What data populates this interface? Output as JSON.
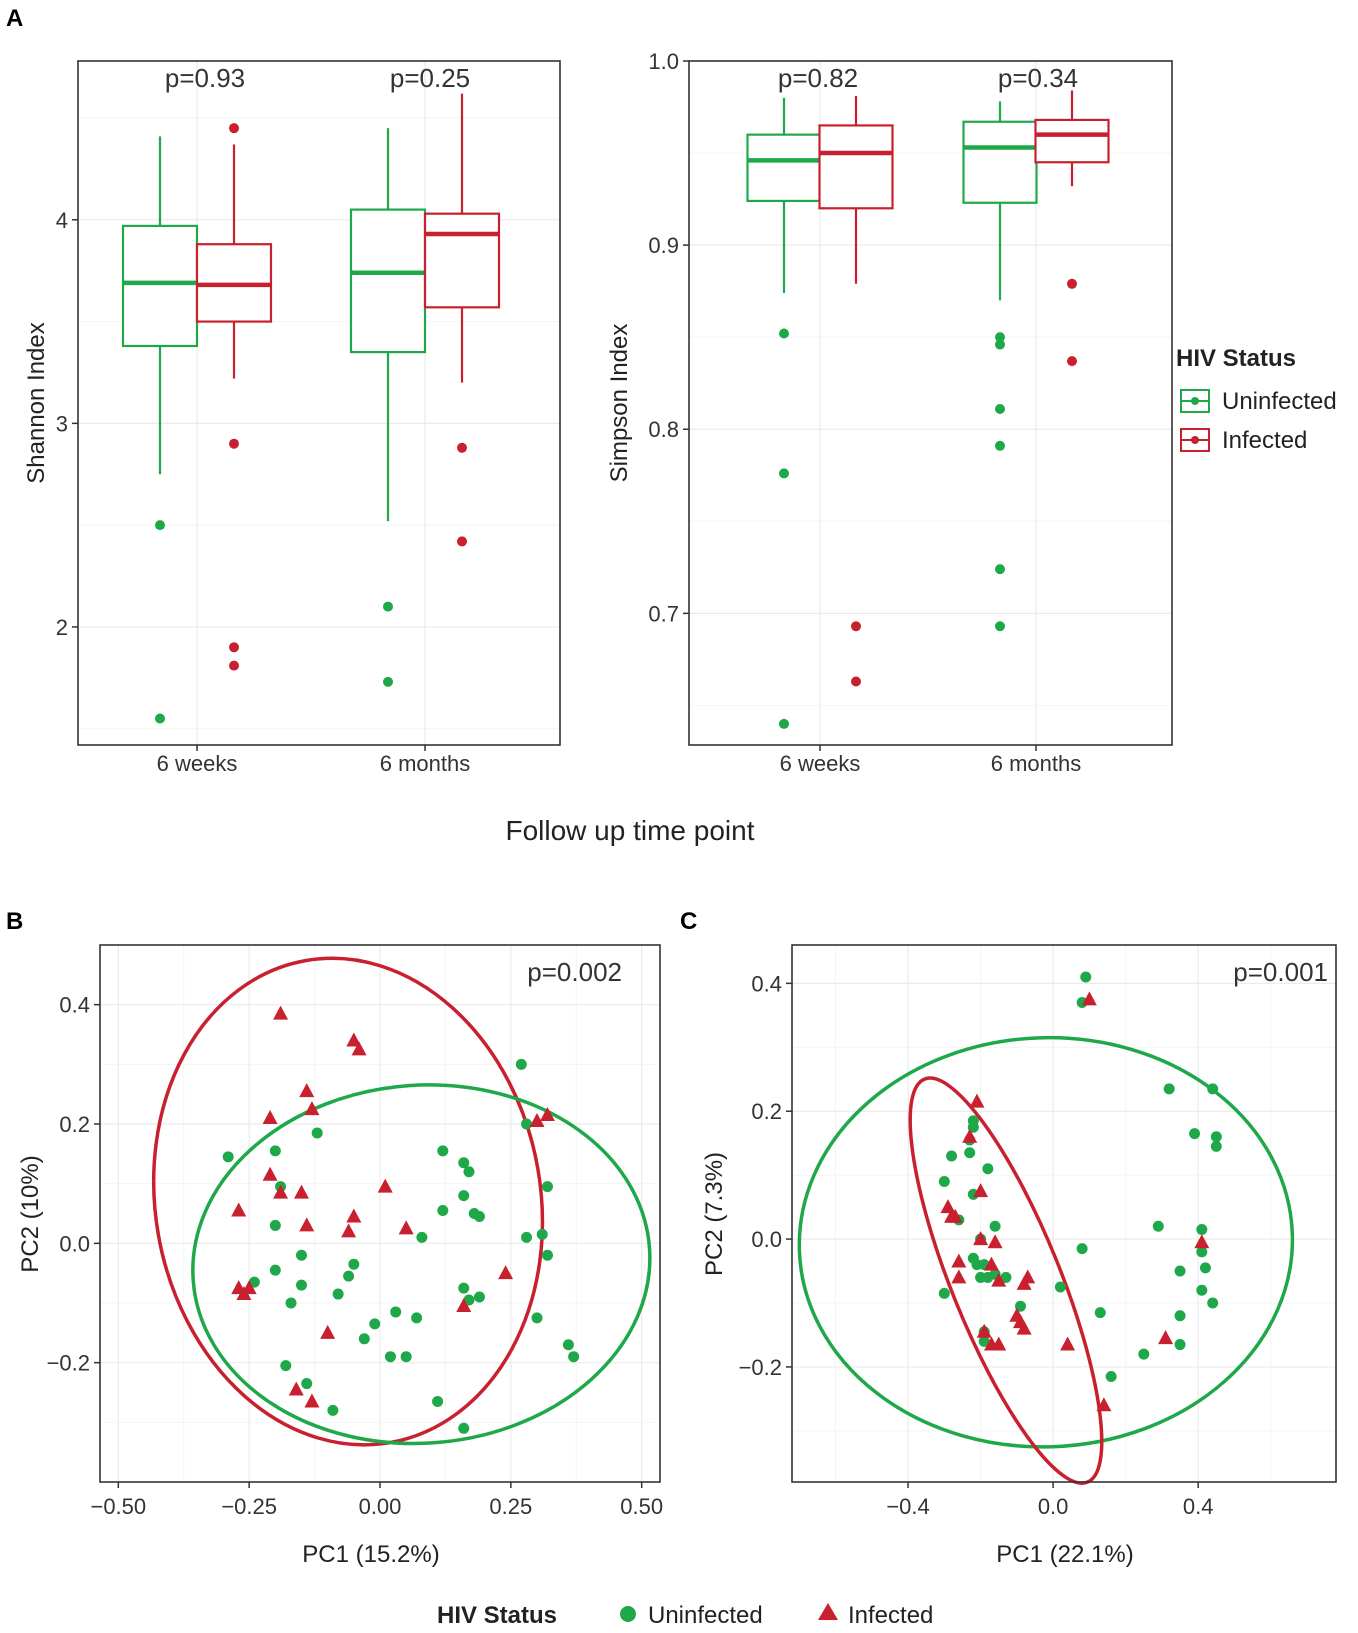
{
  "colors": {
    "uninfected": "#1fa84a",
    "infected": "#c8202e"
  },
  "figure": {
    "panel_a_label": "A",
    "panel_b_label": "B",
    "panel_c_label": "C",
    "shared_xlabel": "Follow up time point"
  },
  "legend_right": {
    "title": "HIV Status",
    "items": [
      "Uninfected",
      "Infected"
    ]
  },
  "legend_bottom": {
    "title": "HIV Status",
    "items": [
      "Uninfected",
      "Infected"
    ]
  },
  "chart_data": [
    {
      "id": "shannon",
      "type": "boxplot",
      "ylabel": "Shannon Index",
      "xlabel": "",
      "categories": [
        "6 weeks",
        "6 months"
      ],
      "ylim": [
        1.42,
        4.78
      ],
      "yticks": [
        2,
        3,
        4
      ],
      "pvalues": [
        "p=0.93",
        "p=0.25"
      ],
      "series": [
        {
          "name": "Uninfected",
          "boxes": [
            {
              "whisker_low": 2.75,
              "q1": 3.38,
              "median": 3.69,
              "q3": 3.97,
              "whisker_high": 4.41,
              "outliers": [
                2.5,
                1.55
              ]
            },
            {
              "whisker_low": 2.52,
              "q1": 3.35,
              "median": 3.74,
              "q3": 4.05,
              "whisker_high": 4.45,
              "outliers": [
                2.1,
                1.73
              ]
            }
          ]
        },
        {
          "name": "Infected",
          "boxes": [
            {
              "whisker_low": 3.22,
              "q1": 3.5,
              "median": 3.68,
              "q3": 3.88,
              "whisker_high": 4.37,
              "outliers": [
                4.45,
                2.9,
                1.9,
                1.81
              ]
            },
            {
              "whisker_low": 3.2,
              "q1": 3.57,
              "median": 3.93,
              "q3": 4.03,
              "whisker_high": 4.62,
              "outliers": [
                2.88,
                2.42
              ]
            }
          ]
        }
      ]
    },
    {
      "id": "simpson",
      "type": "boxplot",
      "ylabel": "Simpson Index",
      "xlabel": "",
      "categories": [
        "6 weeks",
        "6 months"
      ],
      "ylim": [
        0.6285,
        1.0
      ],
      "yticks": [
        0.7,
        0.8,
        0.9,
        1.0
      ],
      "ytick_labels": [
        "0.7",
        "0.8",
        "0.9",
        "1.0"
      ],
      "pvalues": [
        "p=0.82",
        "p=0.34"
      ],
      "series": [
        {
          "name": "Uninfected",
          "boxes": [
            {
              "whisker_low": 0.874,
              "q1": 0.924,
              "median": 0.946,
              "q3": 0.96,
              "whisker_high": 0.98,
              "outliers": [
                0.852,
                0.776,
                0.64
              ]
            },
            {
              "whisker_low": 0.87,
              "q1": 0.923,
              "median": 0.953,
              "q3": 0.967,
              "whisker_high": 0.978,
              "outliers": [
                0.85,
                0.846,
                0.811,
                0.791,
                0.724,
                0.693
              ]
            }
          ]
        },
        {
          "name": "Infected",
          "boxes": [
            {
              "whisker_low": 0.879,
              "q1": 0.92,
              "median": 0.95,
              "q3": 0.965,
              "whisker_high": 0.981,
              "outliers": [
                0.693,
                0.663
              ]
            },
            {
              "whisker_low": 0.932,
              "q1": 0.945,
              "median": 0.96,
              "q3": 0.968,
              "whisker_high": 0.984,
              "outliers": [
                0.879,
                0.837
              ]
            }
          ]
        }
      ]
    },
    {
      "id": "pca_b",
      "type": "scatter",
      "xlabel": "PC1 (15.2%)",
      "ylabel": "PC2 (10%)",
      "xlim": [
        -0.535,
        0.535
      ],
      "ylim": [
        -0.4,
        0.5
      ],
      "xticks": [
        -0.5,
        -0.25,
        0.0,
        0.25,
        0.5
      ],
      "xtick_labels": [
        "−0.50",
        "−0.25",
        "0.00",
        "0.25",
        "0.50"
      ],
      "yticks": [
        -0.2,
        0.0,
        0.2,
        0.4
      ],
      "ytick_labels": [
        "−0.2",
        "0.0",
        "0.2",
        "0.4"
      ],
      "annotation": "p=0.002",
      "series": [
        {
          "name": "Uninfected",
          "marker": "circle",
          "points": [
            [
              -0.29,
              0.145
            ],
            [
              -0.2,
              0.155
            ],
            [
              -0.19,
              0.095
            ],
            [
              -0.2,
              0.03
            ],
            [
              -0.24,
              -0.065
            ],
            [
              -0.2,
              -0.045
            ],
            [
              -0.17,
              -0.1
            ],
            [
              -0.15,
              -0.07
            ],
            [
              -0.15,
              -0.02
            ],
            [
              -0.12,
              0.185
            ],
            [
              -0.14,
              -0.235
            ],
            [
              -0.18,
              -0.205
            ],
            [
              -0.09,
              -0.28
            ],
            [
              -0.08,
              -0.085
            ],
            [
              -0.06,
              -0.055
            ],
            [
              -0.05,
              -0.035
            ],
            [
              -0.03,
              -0.16
            ],
            [
              -0.01,
              -0.135
            ],
            [
              0.02,
              -0.19
            ],
            [
              0.03,
              -0.115
            ],
            [
              0.05,
              -0.19
            ],
            [
              0.07,
              -0.125
            ],
            [
              0.08,
              0.01
            ],
            [
              0.11,
              -0.265
            ],
            [
              0.12,
              0.155
            ],
            [
              0.12,
              0.055
            ],
            [
              0.16,
              0.135
            ],
            [
              0.17,
              0.12
            ],
            [
              0.16,
              0.08
            ],
            [
              0.18,
              0.05
            ],
            [
              0.19,
              0.045
            ],
            [
              0.16,
              -0.075
            ],
            [
              0.17,
              -0.095
            ],
            [
              0.19,
              -0.09
            ],
            [
              0.16,
              -0.31
            ],
            [
              0.27,
              0.3
            ],
            [
              0.28,
              0.2
            ],
            [
              0.28,
              0.01
            ],
            [
              0.31,
              0.015
            ],
            [
              0.32,
              0.095
            ],
            [
              0.32,
              -0.02
            ],
            [
              0.3,
              -0.125
            ],
            [
              0.36,
              -0.17
            ],
            [
              0.37,
              -0.19
            ]
          ]
        },
        {
          "name": "Infected",
          "marker": "triangle",
          "points": [
            [
              -0.19,
              0.385
            ],
            [
              -0.21,
              0.21
            ],
            [
              -0.14,
              0.255
            ],
            [
              -0.13,
              0.225
            ],
            [
              -0.05,
              0.34
            ],
            [
              -0.04,
              0.325
            ],
            [
              -0.21,
              0.115
            ],
            [
              -0.19,
              0.085
            ],
            [
              -0.15,
              0.085
            ],
            [
              -0.27,
              0.055
            ],
            [
              -0.14,
              0.03
            ],
            [
              -0.05,
              0.045
            ],
            [
              -0.06,
              0.02
            ],
            [
              0.01,
              0.095
            ],
            [
              0.05,
              0.025
            ],
            [
              -0.27,
              -0.075
            ],
            [
              -0.26,
              -0.085
            ],
            [
              -0.25,
              -0.075
            ],
            [
              -0.1,
              -0.15
            ],
            [
              0.16,
              -0.105
            ],
            [
              0.24,
              -0.05
            ],
            [
              0.3,
              0.205
            ],
            [
              0.32,
              0.215
            ],
            [
              -0.16,
              -0.245
            ],
            [
              -0.13,
              -0.265
            ]
          ]
        }
      ],
      "ellipses": [
        {
          "name": "Infected",
          "center": [
            -0.061,
            0.07
          ],
          "semi_axes": [
            0.368,
            0.41
          ],
          "angle_deg": -10
        },
        {
          "name": "Uninfected",
          "center": [
            0.079,
            -0.035
          ],
          "semi_axes": [
            0.437,
            0.3
          ],
          "angle_deg": -4
        }
      ]
    },
    {
      "id": "pca_c",
      "type": "scatter",
      "xlabel": "PC1 (22.1%)",
      "ylabel": "PC2 (7.3%)",
      "xlim": [
        -0.72,
        0.78
      ],
      "ylim": [
        -0.38,
        0.46
      ],
      "xticks": [
        -0.4,
        0.0,
        0.4
      ],
      "xtick_labels": [
        "−0.4",
        "0.0",
        "0.4"
      ],
      "yticks": [
        -0.2,
        0.0,
        0.2,
        0.4
      ],
      "ytick_labels": [
        "−0.2",
        "0.0",
        "0.2",
        "0.4"
      ],
      "annotation": "p=0.001",
      "series": [
        {
          "name": "Uninfected",
          "marker": "circle",
          "points": [
            [
              0.09,
              0.41
            ],
            [
              0.08,
              0.37
            ],
            [
              -0.22,
              0.185
            ],
            [
              -0.22,
              0.175
            ],
            [
              -0.23,
              0.155
            ],
            [
              -0.28,
              0.13
            ],
            [
              -0.23,
              0.135
            ],
            [
              -0.18,
              0.11
            ],
            [
              -0.3,
              0.09
            ],
            [
              -0.22,
              0.07
            ],
            [
              -0.26,
              0.03
            ],
            [
              -0.16,
              0.02
            ],
            [
              -0.2,
              0.0
            ],
            [
              -0.21,
              -0.04
            ],
            [
              -0.19,
              -0.04
            ],
            [
              -0.22,
              -0.03
            ],
            [
              -0.16,
              -0.055
            ],
            [
              -0.13,
              -0.06
            ],
            [
              -0.2,
              -0.06
            ],
            [
              -0.18,
              -0.06
            ],
            [
              -0.3,
              -0.085
            ],
            [
              -0.09,
              -0.105
            ],
            [
              0.02,
              -0.075
            ],
            [
              0.08,
              -0.015
            ],
            [
              0.13,
              -0.115
            ],
            [
              0.16,
              -0.215
            ],
            [
              0.25,
              -0.18
            ],
            [
              0.29,
              0.02
            ],
            [
              0.32,
              0.235
            ],
            [
              0.39,
              0.165
            ],
            [
              0.44,
              0.235
            ],
            [
              0.45,
              0.16
            ],
            [
              0.45,
              0.145
            ],
            [
              0.41,
              0.015
            ],
            [
              0.41,
              -0.02
            ],
            [
              0.42,
              -0.045
            ],
            [
              0.35,
              -0.05
            ],
            [
              0.41,
              -0.08
            ],
            [
              0.44,
              -0.1
            ],
            [
              0.35,
              -0.12
            ],
            [
              0.35,
              -0.165
            ],
            [
              -0.19,
              -0.145
            ],
            [
              -0.19,
              -0.16
            ]
          ]
        },
        {
          "name": "Infected",
          "marker": "triangle",
          "points": [
            [
              0.1,
              0.375
            ],
            [
              -0.21,
              0.215
            ],
            [
              -0.23,
              0.16
            ],
            [
              -0.2,
              0.075
            ],
            [
              -0.29,
              0.05
            ],
            [
              -0.27,
              0.035
            ],
            [
              -0.28,
              0.035
            ],
            [
              -0.2,
              0.0
            ],
            [
              -0.16,
              -0.005
            ],
            [
              -0.26,
              -0.035
            ],
            [
              -0.17,
              -0.04
            ],
            [
              -0.26,
              -0.06
            ],
            [
              -0.15,
              -0.065
            ],
            [
              -0.07,
              -0.06
            ],
            [
              -0.08,
              -0.07
            ],
            [
              -0.1,
              -0.12
            ],
            [
              -0.09,
              -0.13
            ],
            [
              -0.08,
              -0.14
            ],
            [
              -0.19,
              -0.145
            ],
            [
              -0.17,
              -0.165
            ],
            [
              -0.15,
              -0.165
            ],
            [
              0.04,
              -0.165
            ],
            [
              0.31,
              -0.155
            ],
            [
              0.41,
              -0.005
            ],
            [
              0.14,
              -0.26
            ]
          ]
        }
      ],
      "ellipses": [
        {
          "name": "Uninfected",
          "center": [
            -0.02,
            -0.005
          ],
          "semi_axes": [
            0.68,
            0.32
          ],
          "angle_deg": -2
        },
        {
          "name": "Infected",
          "center": [
            -0.13,
            -0.065
          ],
          "semi_axes": [
            0.15,
            0.34
          ],
          "angle_deg": -22
        }
      ]
    }
  ]
}
